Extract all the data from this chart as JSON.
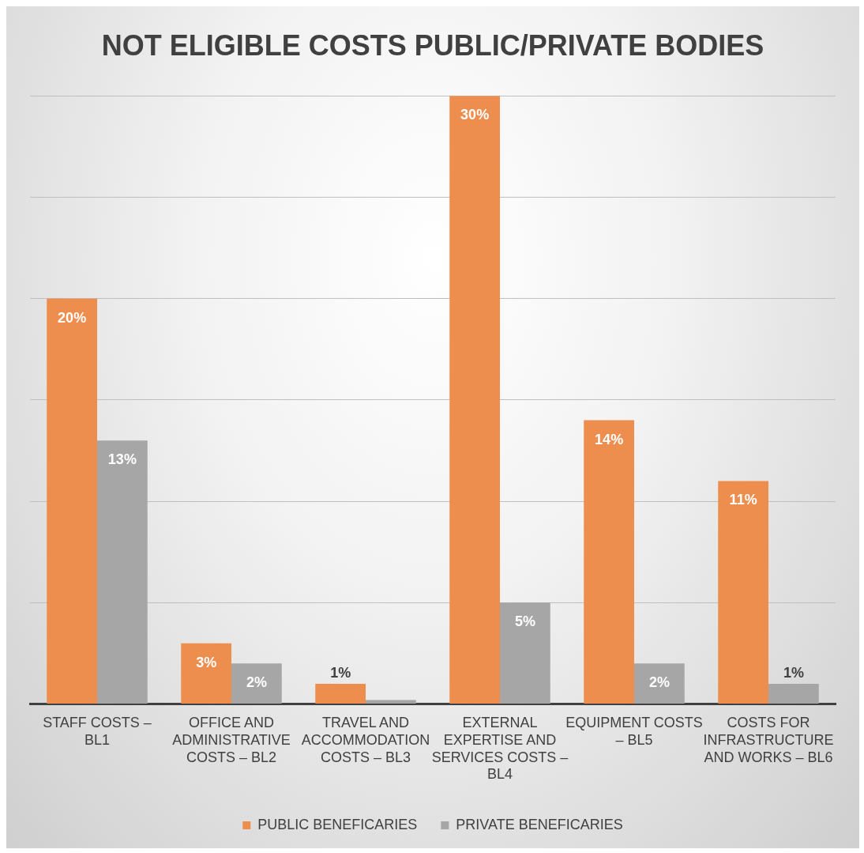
{
  "chart_data": {
    "type": "bar",
    "title": "NOT ELIGIBLE COSTS PUBLIC/PRIVATE BODIES",
    "categories": [
      "STAFF COSTS – BL1",
      "OFFICE AND ADMINISTRATIVE COSTS – BL2",
      "TRAVEL AND ACCOMMODATION COSTS – BL3",
      "EXTERNAL EXPERTISE AND SERVICES COSTS – BL4",
      "EQUIPMENT COSTS – BL5",
      "COSTS FOR INFRASTRUCTURE AND WORKS – BL6"
    ],
    "series": [
      {
        "name": "PUBLIC BENEFICARIES",
        "color": "#ed8d4e",
        "values": [
          20,
          3,
          1,
          30,
          14,
          11
        ],
        "value_labels": [
          "20%",
          "3%",
          "1%",
          "30%",
          "14%",
          "11%"
        ]
      },
      {
        "name": "PRIVATE BENEFICARIES",
        "color": "#a6a6a6",
        "values": [
          13,
          2,
          0.2,
          5,
          2,
          1
        ],
        "value_labels": [
          "13%",
          "2%",
          null,
          "5%",
          "2%",
          "1%"
        ]
      }
    ],
    "ylim": [
      0,
      30
    ],
    "yticks": [
      0,
      5,
      10,
      15,
      20,
      25,
      30
    ],
    "grid": "y",
    "tick_labels": "x",
    "legend": "bottom"
  }
}
